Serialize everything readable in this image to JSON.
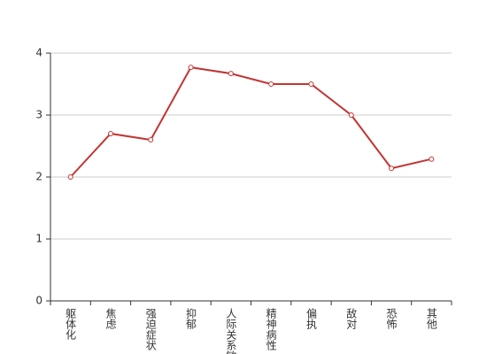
{
  "chart_data": {
    "type": "line",
    "categories": [
      "躯体化",
      "焦虑",
      "强迫症状",
      "抑郁",
      "人际关系敏感",
      "精神病性",
      "偏执",
      "敌对",
      "恐怖",
      "其他"
    ],
    "series": [
      {
        "color": "#c23531",
        "values": [
          2.0,
          2.7,
          2.6,
          3.77,
          3.67,
          3.5,
          3.5,
          3.0,
          2.14,
          2.29
        ]
      }
    ],
    "ylim": [
      0,
      4
    ],
    "yticks": [
      0,
      1,
      2,
      3,
      4
    ],
    "grid": true
  }
}
